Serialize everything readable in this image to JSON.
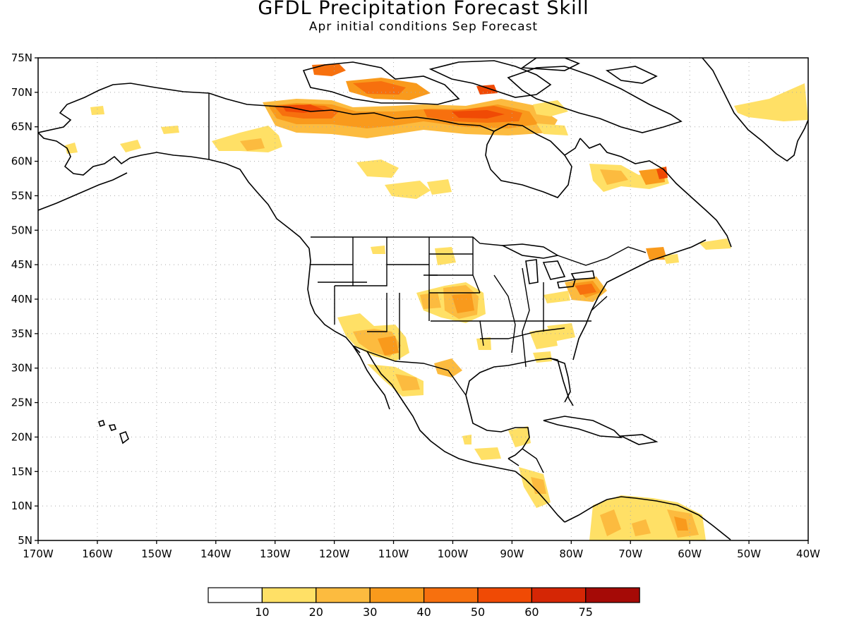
{
  "title": "GFDL Precipitation Forecast Skill",
  "subtitle": "Apr initial conditions  Sep Forecast",
  "map": {
    "lon_range": [
      -170,
      -40
    ],
    "lat_range": [
      5,
      75
    ],
    "lat_ticks": [
      {
        "value": 75,
        "label": "75N"
      },
      {
        "value": 70,
        "label": "70N"
      },
      {
        "value": 65,
        "label": "65N"
      },
      {
        "value": 60,
        "label": "60N"
      },
      {
        "value": 55,
        "label": "55N"
      },
      {
        "value": 50,
        "label": "50N"
      },
      {
        "value": 45,
        "label": "45N"
      },
      {
        "value": 40,
        "label": "40N"
      },
      {
        "value": 35,
        "label": "35N"
      },
      {
        "value": 30,
        "label": "30N"
      },
      {
        "value": 25,
        "label": "25N"
      },
      {
        "value": 20,
        "label": "20N"
      },
      {
        "value": 15,
        "label": "15N"
      },
      {
        "value": 10,
        "label": "10N"
      },
      {
        "value": 5,
        "label": "5N"
      }
    ],
    "lon_ticks": [
      {
        "value": -170,
        "label": "170W"
      },
      {
        "value": -160,
        "label": "160W"
      },
      {
        "value": -150,
        "label": "150W"
      },
      {
        "value": -140,
        "label": "140W"
      },
      {
        "value": -130,
        "label": "130W"
      },
      {
        "value": -120,
        "label": "120W"
      },
      {
        "value": -110,
        "label": "110W"
      },
      {
        "value": -100,
        "label": "100W"
      },
      {
        "value": -90,
        "label": "90W"
      },
      {
        "value": -80,
        "label": "80W"
      },
      {
        "value": -70,
        "label": "70W"
      },
      {
        "value": -60,
        "label": "60W"
      },
      {
        "value": -50,
        "label": "50W"
      },
      {
        "value": -40,
        "label": "40W"
      }
    ],
    "grid": "dotted"
  },
  "colorbar": {
    "bins": [
      {
        "color": "#ffffff"
      },
      {
        "color": "#ffe066"
      },
      {
        "color": "#fcbb3f"
      },
      {
        "color": "#f99a1c"
      },
      {
        "color": "#f7700e"
      },
      {
        "color": "#f04a05"
      },
      {
        "color": "#d52605"
      },
      {
        "color": "#a50a06"
      }
    ],
    "labels": [
      "10",
      "20",
      "30",
      "40",
      "50",
      "60",
      "75"
    ]
  },
  "skill_regions": [
    {
      "name": "northern-canada-arctic",
      "level": 50,
      "lon": -115,
      "lat": 67
    },
    {
      "name": "hudson-bay-east",
      "level": 30,
      "lon": -90,
      "lat": 66
    },
    {
      "name": "alaska-yukon",
      "level": 20,
      "lon": -140,
      "lat": 62
    },
    {
      "name": "labrador",
      "level": 30,
      "lon": -70,
      "lat": 57
    },
    {
      "name": "greenland-east",
      "level": 20,
      "lon": -45,
      "lat": 68
    },
    {
      "name": "arizona-sonora",
      "level": 40,
      "lon": -110,
      "lat": 33
    },
    {
      "name": "kansas-nebraska",
      "level": 30,
      "lon": -100,
      "lat": 40
    },
    {
      "name": "pennsylvania",
      "level": 40,
      "lon": -78,
      "lat": 41
    },
    {
      "name": "northern-south-america",
      "level": 20,
      "lon": -70,
      "lat": 8
    }
  ]
}
